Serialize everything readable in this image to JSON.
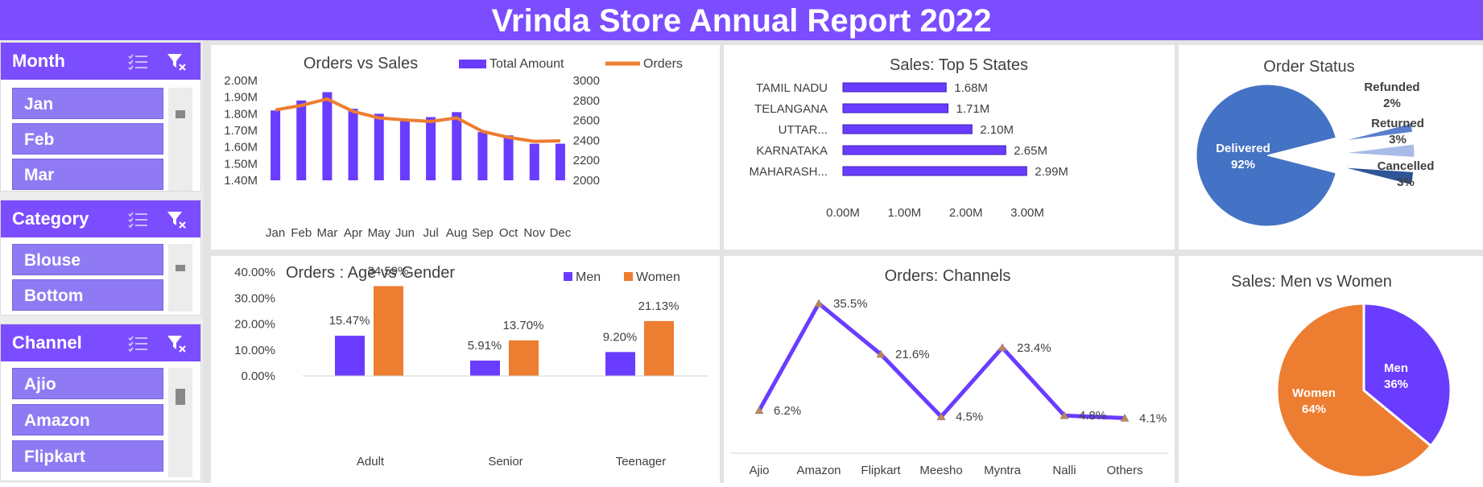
{
  "header": {
    "title": "Vrinda Store Annual Report 2022"
  },
  "colors": {
    "accent": "#7c4dff",
    "series_purple": "#6a3cff",
    "series_orange": "#ed7d31",
    "pie_blue": "#4472c4"
  },
  "slicers": [
    {
      "title": "Month",
      "items": [
        "Jan",
        "Feb",
        "Mar"
      ]
    },
    {
      "title": "Category",
      "items": [
        "Blouse",
        "Bottom"
      ]
    },
    {
      "title": "Channel",
      "items": [
        "Ajio",
        "Amazon",
        "Flipkart"
      ]
    }
  ],
  "chart_data": [
    {
      "id": "orders_vs_sales",
      "type": "bar",
      "title": "Orders vs Sales",
      "categories": [
        "Jan",
        "Feb",
        "Mar",
        "Apr",
        "May",
        "Jun",
        "Jul",
        "Aug",
        "Sep",
        "Oct",
        "Nov",
        "Dec"
      ],
      "series": [
        {
          "name": "Total Amount",
          "type": "bar",
          "axis": "left",
          "values": [
            1.82,
            1.88,
            1.93,
            1.83,
            1.8,
            1.76,
            1.78,
            1.81,
            1.69,
            1.67,
            1.62,
            1.62
          ]
        },
        {
          "name": "Orders",
          "type": "line",
          "axis": "right",
          "values": [
            2705,
            2750,
            2815,
            2690,
            2625,
            2605,
            2590,
            2625,
            2490,
            2430,
            2390,
            2395
          ]
        }
      ],
      "ylim": [
        1.4,
        2.0
      ],
      "y_ticks": [
        "2.00M",
        "1.90M",
        "1.80M",
        "1.70M",
        "1.60M",
        "1.50M",
        "1.40M"
      ],
      "y2lim": [
        2000,
        3000
      ],
      "y2_ticks": [
        "3000",
        "2800",
        "2600",
        "2400",
        "2200",
        "2000"
      ],
      "legend": "top"
    },
    {
      "id": "top5_states",
      "type": "bar",
      "orientation": "horizontal",
      "title": "Sales: Top 5 States",
      "categories": [
        "TAMIL NADU",
        "TELANGANA",
        "UTTAR...",
        "KARNATAKA",
        "MAHARASH..."
      ],
      "values": [
        1.68,
        1.71,
        2.1,
        2.65,
        2.99
      ],
      "value_labels": [
        "1.68M",
        "1.71M",
        "2.10M",
        "2.65M",
        "2.99M"
      ],
      "xlim": [
        0,
        3.0
      ],
      "x_ticks": [
        "0.00M",
        "1.00M",
        "2.00M",
        "3.00M"
      ]
    },
    {
      "id": "order_status",
      "type": "pie",
      "title": "Order Status",
      "slices": [
        {
          "label": "Delivered",
          "value": 92,
          "pct": "92%",
          "color": "#4472c4"
        },
        {
          "label": "Refunded",
          "value": 2,
          "pct": "2%",
          "color": "#5b7fce"
        },
        {
          "label": "Returned",
          "value": 3,
          "pct": "3%",
          "color": "#a9bbe8"
        },
        {
          "label": "Cancelled",
          "value": 3,
          "pct": "3%",
          "color": "#2f5597"
        }
      ]
    },
    {
      "id": "age_vs_gender",
      "type": "bar",
      "title": "Orders : Age vs Gender",
      "categories": [
        "Adult",
        "Senior",
        "Teenager"
      ],
      "series": [
        {
          "name": "Men",
          "values": [
            15.47,
            5.91,
            9.2
          ],
          "labels": [
            "15.47%",
            "5.91%",
            "9.20%"
          ]
        },
        {
          "name": "Women",
          "values": [
            34.59,
            13.7,
            21.13
          ],
          "labels": [
            "34.59%",
            "13.70%",
            "21.13%"
          ]
        }
      ],
      "ylim": [
        0,
        40
      ],
      "y_ticks": [
        "40.00%",
        "30.00%",
        "20.00%",
        "10.00%",
        "0.00%"
      ],
      "legend": "top-right"
    },
    {
      "id": "channels",
      "type": "line",
      "title": "Orders: Channels",
      "categories": [
        "Ajio",
        "Amazon",
        "Flipkart",
        "Meesho",
        "Myntra",
        "Nalli",
        "Others"
      ],
      "values": [
        6.2,
        35.5,
        21.6,
        4.5,
        23.4,
        4.8,
        4.1
      ],
      "labels": [
        "6.2%",
        "35.5%",
        "21.6%",
        "4.5%",
        "23.4%",
        "4.8%",
        "4.1%"
      ]
    },
    {
      "id": "men_vs_women",
      "type": "pie",
      "title": "Sales: Men vs Women",
      "slices": [
        {
          "label": "Men",
          "value": 36,
          "pct": "36%",
          "color": "#6a3cff"
        },
        {
          "label": "Women",
          "value": 64,
          "pct": "64%",
          "color": "#ed7d31"
        }
      ]
    }
  ]
}
